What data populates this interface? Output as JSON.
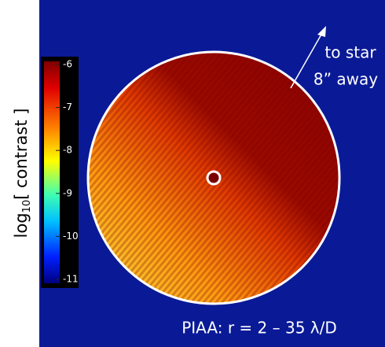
{
  "colorbar": {
    "label": {
      "base": "log",
      "subscript": "10",
      "rest": "[ contrast ]"
    },
    "lim": [
      -11,
      -6
    ],
    "ticks": [
      -6,
      -7,
      -8,
      -9,
      -10,
      -11
    ]
  },
  "annotations": {
    "direction_line1": "to star",
    "direction_line2": "8” away",
    "caption": "PIAA: r = 2 – 35 λ/D"
  }
}
